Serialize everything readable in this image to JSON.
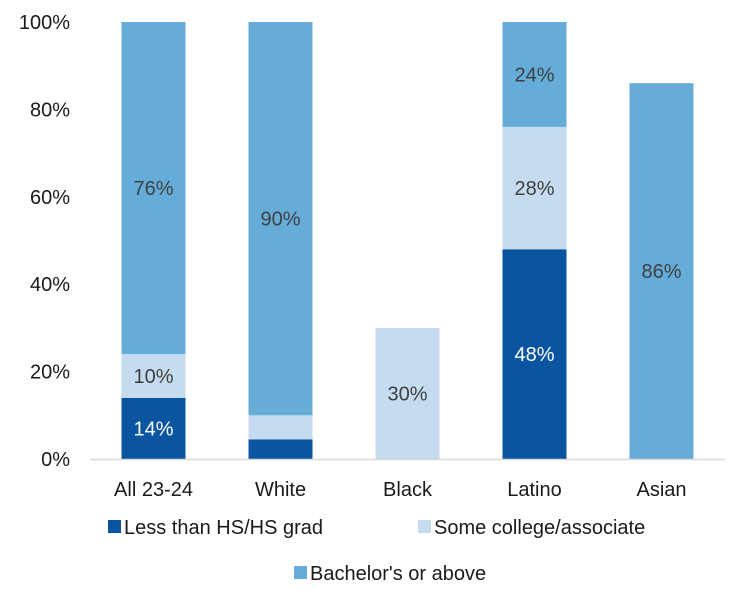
{
  "chart_data": {
    "type": "bar",
    "stacked": true,
    "categories": [
      "All 23-24",
      "White",
      "Black",
      "Latino",
      "Asian"
    ],
    "ylim": [
      0,
      100
    ],
    "yticks": [
      "0%",
      "20%",
      "40%",
      "60%",
      "80%",
      "100%"
    ],
    "grid": false,
    "legend_position": "bottom",
    "series": [
      {
        "name": "Less than HS/HS grad",
        "color": "#0b55a0",
        "label_color": "#ffffff",
        "values": [
          14,
          4.5,
          0,
          48,
          0
        ],
        "labels": [
          "14%",
          "",
          "",
          "48%",
          ""
        ]
      },
      {
        "name": "Some college/associate",
        "color": "#c5dbef",
        "label_color": "#404040",
        "values": [
          10,
          5.5,
          30,
          28,
          0
        ],
        "labels": [
          "10%",
          "",
          "30%",
          "28%",
          ""
        ]
      },
      {
        "name": "Bachelor's or above",
        "color": "#66acd9",
        "label_color": "#404040",
        "values": [
          76,
          90,
          0,
          24,
          86
        ],
        "labels": [
          "76%",
          "90%",
          "",
          "24%",
          "86%"
        ]
      }
    ]
  }
}
